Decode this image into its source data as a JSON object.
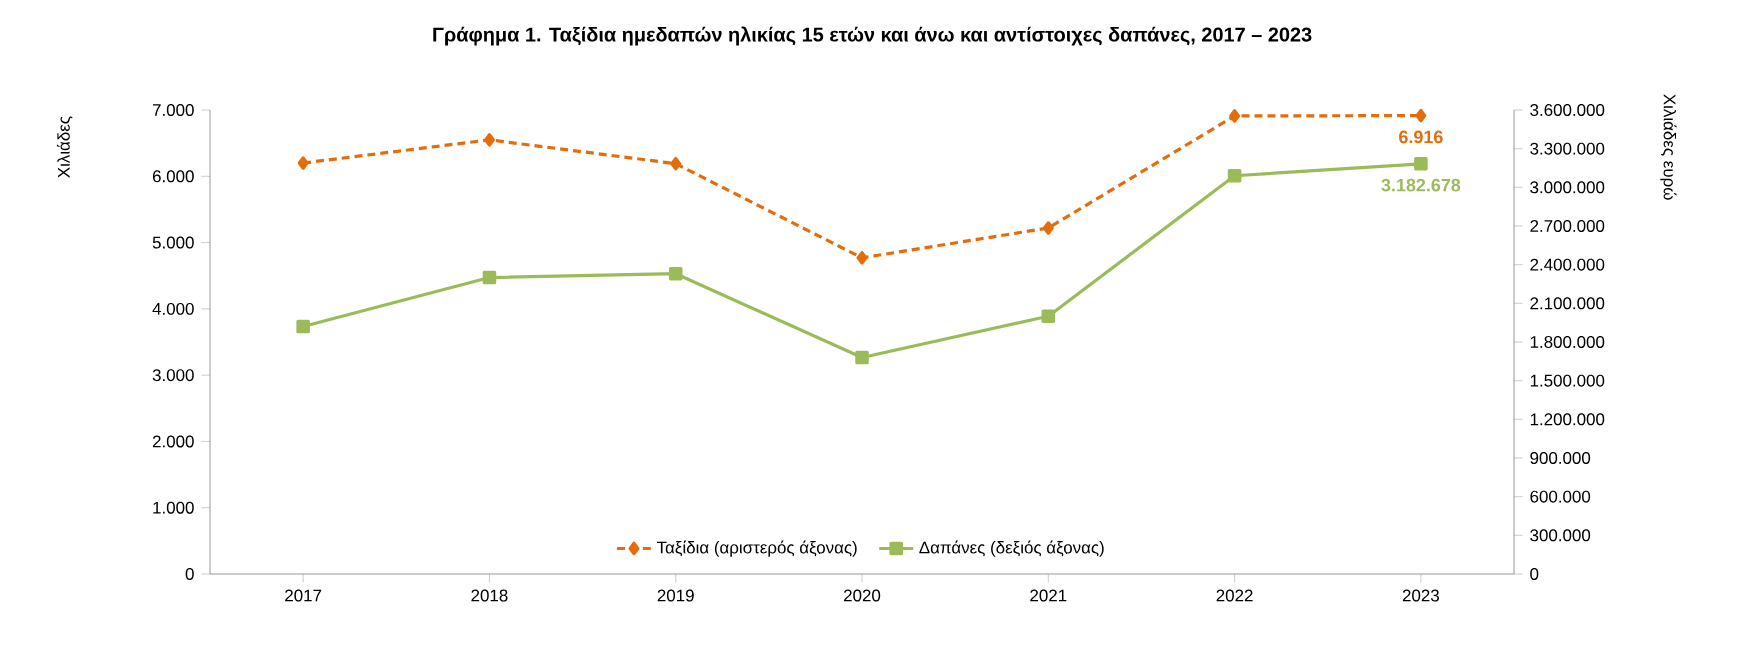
{
  "chart_data": {
    "type": "line",
    "title": "Γράφημα 1. Ταξίδια ημεδαπών ηλικίας 15 ετών και άνω και αντίστοιχες δαπάνες, 2017 – 2023",
    "ylabel": "Χιλιάδες",
    "y2label": "Χιλιάδες ευρώ",
    "categories": [
      "2017",
      "2018",
      "2019",
      "2020",
      "2021",
      "2022",
      "2023"
    ],
    "series": [
      {
        "name": "Ταξίδια (αριστερός άξονας)",
        "color": "#e46c0a",
        "marker": "diamond",
        "line_style": "dashed",
        "values": [
          6200,
          6550,
          6190,
          4770,
          5220,
          6910,
          6916
        ],
        "value_labels": [
          null,
          null,
          null,
          null,
          null,
          null,
          "6.916"
        ]
      },
      {
        "name": "Δαπάνες (δεξιός άξονας)",
        "color": "#9bbb59",
        "marker": "square",
        "line_style": "solid",
        "axis": "y2",
        "values": [
          1920000,
          2300000,
          2330000,
          1680000,
          2000000,
          3090000,
          3182678
        ],
        "value_labels": [
          null,
          null,
          null,
          null,
          null,
          null,
          "3.182.678"
        ]
      }
    ],
    "ylim": [
      0,
      7000
    ],
    "yticks": [
      {
        "value": 0,
        "label": "0"
      },
      {
        "value": 1000,
        "label": "1.000"
      },
      {
        "value": 2000,
        "label": "2.000"
      },
      {
        "value": 3000,
        "label": "3.000"
      },
      {
        "value": 4000,
        "label": "4.000"
      },
      {
        "value": 5000,
        "label": "5.000"
      },
      {
        "value": 6000,
        "label": "6.000"
      },
      {
        "value": 7000,
        "label": "7.000"
      }
    ],
    "y2lim": [
      0,
      3600000
    ],
    "y2ticks": [
      {
        "value": 0,
        "label": "0"
      },
      {
        "value": 300000,
        "label": "300.000"
      },
      {
        "value": 600000,
        "label": "600.000"
      },
      {
        "value": 900000,
        "label": "900.000"
      },
      {
        "value": 1200000,
        "label": "1.200.000"
      },
      {
        "value": 1500000,
        "label": "1.500.000"
      },
      {
        "value": 1800000,
        "label": "1.800.000"
      },
      {
        "value": 2100000,
        "label": "2.100.000"
      },
      {
        "value": 2400000,
        "label": "2.400.000"
      },
      {
        "value": 2700000,
        "label": "2.700.000"
      },
      {
        "value": 3000000,
        "label": "3.000.000"
      },
      {
        "value": 3300000,
        "label": "3.300.000"
      },
      {
        "value": 3600000,
        "label": "3.600.000"
      }
    ],
    "grid": false,
    "legend": "bottom"
  }
}
